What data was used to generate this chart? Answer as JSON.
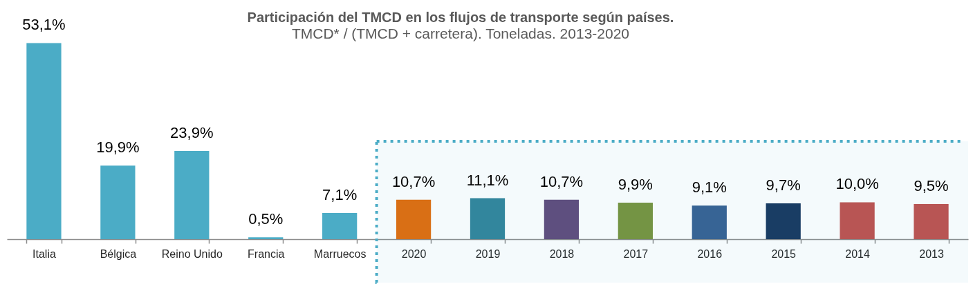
{
  "chart_data": {
    "type": "bar",
    "title": "Participación del TMCD en los flujos de transporte según países.",
    "subtitle": "TMCD* / (TMCD + carretera). Toneladas. 2013-2020",
    "categories": [
      "Italia",
      "Bélgica",
      "Reino Unido",
      "Francia",
      "Marruecos",
      "2020",
      "2019",
      "2018",
      "2017",
      "2016",
      "2015",
      "2014",
      "2013"
    ],
    "values": [
      53.1,
      19.9,
      23.9,
      0.5,
      7.1,
      10.7,
      11.1,
      10.7,
      9.9,
      9.1,
      9.7,
      10.0,
      9.5
    ],
    "value_labels": [
      "53,1%",
      "19,9%",
      "23,9%",
      "0,5%",
      "7,1%",
      "10,7%",
      "11,1%",
      "10,7%",
      "9,9%",
      "9,1%",
      "9,7%",
      "10,0%",
      "9,5%"
    ],
    "colors": [
      "#4bacc6",
      "#4bacc6",
      "#4bacc6",
      "#4bacc6",
      "#4bacc6",
      "#e36c0a",
      "#31849b",
      "#604a7b",
      "#77933c",
      "#376092",
      "#17375e",
      "#c0504d",
      "#c0504d"
    ],
    "bands": [
      {
        "axis": "x",
        "from": "2020",
        "to": "2013",
        "color": "#4bacc6"
      }
    ]
  }
}
